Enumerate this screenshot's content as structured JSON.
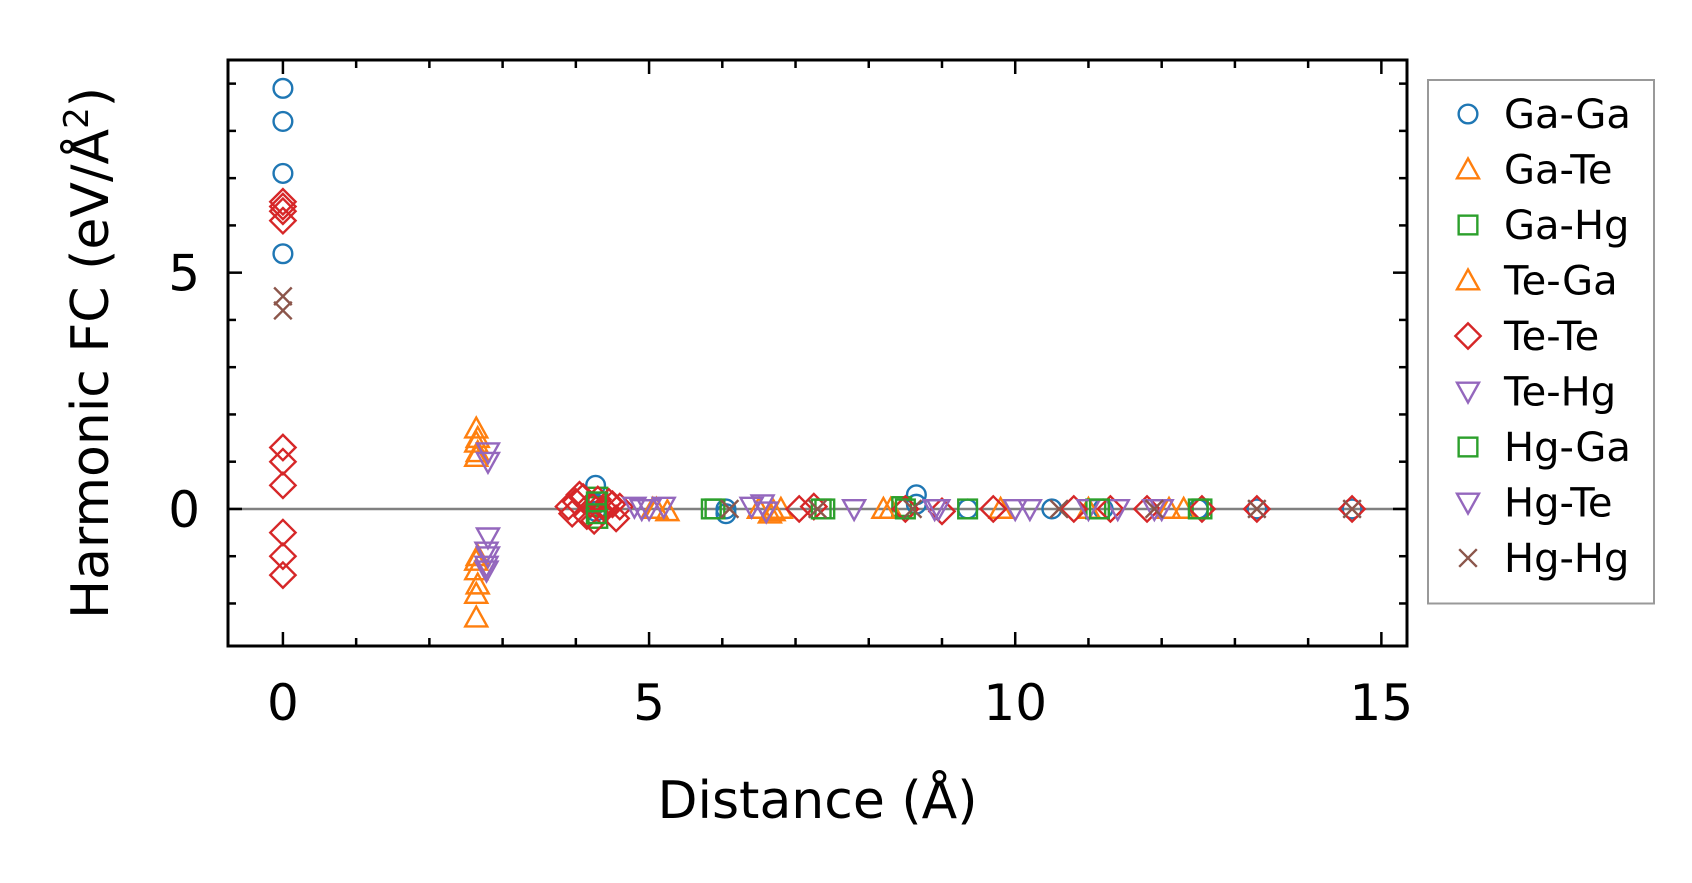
{
  "chart_data": {
    "type": "scatter",
    "title": "",
    "xlabel": "Distance (Å)",
    "ylabel": "Harmonic FC (eV/Å²)",
    "ylabel_base": "Harmonic FC (eV/Å",
    "ylabel_sup": "2",
    "ylabel_close": ")",
    "xlim": [
      -0.75,
      15.35
    ],
    "ylim": [
      -2.9,
      9.5
    ],
    "xticks": [
      0,
      5,
      10,
      15
    ],
    "xtick_labels": [
      "0",
      "5",
      "10",
      "15"
    ],
    "yticks": [
      0,
      5
    ],
    "ytick_labels": [
      "0",
      "5"
    ],
    "zero_line": true,
    "grid": false,
    "legend_position": "right, outside plot",
    "series": [
      {
        "name": "Ga-Ga",
        "marker": "circle",
        "color": "#1f77b4",
        "x": [
          0,
          0,
          0,
          0,
          4.27,
          4.27,
          4.27,
          6.05,
          6.05,
          8.65,
          8.65,
          9.35,
          10.5,
          11.2,
          12.5,
          13.3,
          14.6
        ],
        "y": [
          8.9,
          8.2,
          7.1,
          5.4,
          0.5,
          0.1,
          -0.05,
          0.0,
          -0.1,
          0.3,
          0.1,
          0.0,
          0.0,
          0.0,
          0.0,
          0.0,
          0.0
        ]
      },
      {
        "name": "Ga-Te",
        "marker": "triangle-up",
        "color": "#ff7f0e",
        "x": [
          2.64,
          2.64,
          2.64,
          2.64,
          2.64,
          2.64,
          2.64,
          5.05,
          5.25,
          6.5,
          6.65,
          6.8,
          8.3,
          9.8,
          11.0,
          12.1
        ],
        "y": [
          1.7,
          1.4,
          1.1,
          -1.1,
          -1.3,
          -1.8,
          -2.3,
          0.0,
          -0.05,
          0.0,
          -0.1,
          0.0,
          0.0,
          0.0,
          0.0,
          0.0
        ]
      },
      {
        "name": "Ga-Hg",
        "marker": "square",
        "color": "#2ca02c",
        "x": [
          4.3,
          4.3,
          4.3,
          5.85,
          7.4,
          8.45,
          9.35,
          11.1,
          12.55
        ],
        "y": [
          0.25,
          0.05,
          -0.2,
          0.0,
          0.0,
          0.05,
          0.0,
          0.0,
          0.0
        ]
      },
      {
        "name": "Te-Ga",
        "marker": "triangle-up",
        "color": "#ff7f0e",
        "x": [
          2.66,
          2.66,
          2.66,
          2.66,
          5.1,
          6.7,
          8.2,
          12.3
        ],
        "y": [
          1.5,
          1.2,
          -1.0,
          -1.6,
          0.0,
          -0.05,
          0.0,
          0.0
        ]
      },
      {
        "name": "Te-Te",
        "marker": "diamond",
        "color": "#d62728",
        "x": [
          0,
          0,
          0,
          0,
          0,
          0,
          0,
          0,
          0,
          0,
          3.9,
          4.0,
          4.1,
          4.2,
          4.3,
          4.4,
          4.5,
          4.6,
          3.95,
          4.15,
          4.35,
          4.55,
          4.05,
          4.25,
          4.45,
          7.05,
          7.25,
          8.5,
          9.0,
          9.7,
          10.8,
          11.3,
          11.8,
          12.55,
          13.3,
          14.6
        ],
        "y": [
          6.5,
          6.3,
          6.1,
          1.3,
          1.0,
          0.5,
          -0.5,
          -1.0,
          -1.4,
          6.4,
          0.05,
          0.15,
          0.25,
          0.1,
          0.2,
          0.0,
          0.1,
          0.05,
          -0.1,
          -0.15,
          -0.05,
          -0.2,
          0.3,
          -0.25,
          0.15,
          0.0,
          0.05,
          0.0,
          -0.05,
          0.0,
          0.0,
          0.0,
          0.0,
          0.0,
          0.0,
          0.0
        ]
      },
      {
        "name": "Te-Hg",
        "marker": "triangle-down",
        "color": "#9467bd",
        "x": [
          2.8,
          2.8,
          2.8,
          2.8,
          4.8,
          5.0,
          5.2,
          6.4,
          6.6,
          7.8,
          8.9,
          10.0,
          11.0,
          11.4,
          12.0
        ],
        "y": [
          1.2,
          1.0,
          -0.6,
          -1.0,
          0.05,
          0.0,
          0.05,
          0.05,
          -0.05,
          0.0,
          0.0,
          0.0,
          0.0,
          0.0,
          0.0
        ]
      },
      {
        "name": "Hg-Ga",
        "marker": "square",
        "color": "#2ca02c",
        "x": [
          4.28,
          4.28,
          5.9,
          7.35,
          8.5,
          11.15,
          12.5
        ],
        "y": [
          0.15,
          -0.1,
          0.0,
          0.0,
          0.0,
          0.0,
          0.0
        ]
      },
      {
        "name": "Hg-Te",
        "marker": "triangle-down",
        "color": "#9467bd",
        "x": [
          2.78,
          2.78,
          2.78,
          4.9,
          6.55,
          8.95,
          10.2,
          11.9
        ],
        "y": [
          -0.9,
          -1.2,
          -1.3,
          0.0,
          0.1,
          0.0,
          0.0,
          0.0
        ]
      },
      {
        "name": "Hg-Hg",
        "marker": "x",
        "color": "#8c564b",
        "x": [
          0,
          0,
          6.1,
          7.3,
          8.6,
          10.6,
          11.9,
          13.3,
          14.6
        ],
        "y": [
          4.5,
          4.2,
          0.0,
          0.0,
          0.0,
          0.0,
          0.0,
          0.0,
          0.0
        ]
      }
    ]
  }
}
